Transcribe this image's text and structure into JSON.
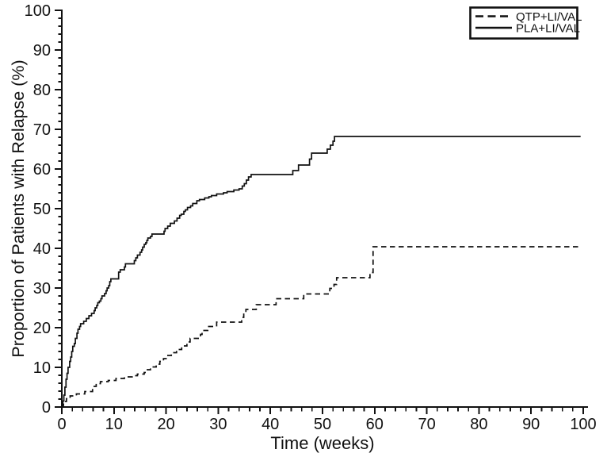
{
  "chart_data": {
    "type": "line",
    "subtype": "kaplan-meier-step",
    "title": "",
    "xlabel": "Time (weeks)",
    "ylabel": "Proportion of Patients with Relapse (%)",
    "xlim": [
      0,
      100
    ],
    "ylim": [
      0,
      100
    ],
    "x_major_ticks": [
      0,
      10,
      20,
      30,
      40,
      50,
      60,
      70,
      80,
      90,
      100
    ],
    "y_major_ticks": [
      0,
      10,
      20,
      30,
      40,
      50,
      60,
      70,
      80,
      90,
      100
    ],
    "minor_tick_interval": 2,
    "grid": "off",
    "line_color": "#111111",
    "background": "#ffffff",
    "legend": {
      "position": "top-right",
      "items": [
        {
          "label": "QTP+LI/VAL",
          "style": "dashed"
        },
        {
          "label": "PLA+LI/VAL",
          "style": "solid"
        }
      ]
    },
    "series": [
      {
        "name": "QTP+LI/VAL",
        "style": "dashed",
        "final_value": 40.4,
        "points": [
          [
            0,
            0
          ],
          [
            0.3,
            0.7
          ],
          [
            0.6,
            1.4
          ],
          [
            0.9,
            2.1
          ],
          [
            1.6,
            2.8
          ],
          [
            2.8,
            3.3
          ],
          [
            4.4,
            3.9
          ],
          [
            5.9,
            5.2
          ],
          [
            6.6,
            5.9
          ],
          [
            7.4,
            6.4
          ],
          [
            8.9,
            6.7
          ],
          [
            10.4,
            7.2
          ],
          [
            12,
            7.6
          ],
          [
            13.5,
            7.9
          ],
          [
            14.5,
            8.3
          ],
          [
            15.8,
            8.7
          ],
          [
            16.4,
            9.4
          ],
          [
            17,
            10.1
          ],
          [
            18.1,
            10.8
          ],
          [
            18.8,
            11.5
          ],
          [
            19.5,
            12.2
          ],
          [
            20.2,
            13
          ],
          [
            21,
            13.7
          ],
          [
            22,
            14.5
          ],
          [
            23,
            15.4
          ],
          [
            24,
            16.4
          ],
          [
            24.6,
            17.3
          ],
          [
            26.6,
            18.3
          ],
          [
            26.9,
            19.3
          ],
          [
            28,
            20.3
          ],
          [
            29.7,
            21.4
          ],
          [
            34.5,
            22.6
          ],
          [
            34.9,
            23.6
          ],
          [
            35.3,
            24.6
          ],
          [
            37.3,
            25.8
          ],
          [
            41.1,
            27.3
          ],
          [
            46.4,
            28.5
          ],
          [
            51.4,
            29.9
          ],
          [
            52.2,
            30.9
          ],
          [
            52.7,
            32.6
          ],
          [
            59.1,
            33.9
          ],
          [
            59.7,
            40.4
          ],
          [
            99.5,
            40.4
          ]
        ]
      },
      {
        "name": "PLA+LI/VAL",
        "style": "solid",
        "final_value": 68.2,
        "points": [
          [
            0,
            0
          ],
          [
            0.2,
            1.5
          ],
          [
            0.4,
            3
          ],
          [
            0.6,
            5
          ],
          [
            0.8,
            7
          ],
          [
            1,
            8.5
          ],
          [
            1.2,
            10
          ],
          [
            1.5,
            11.5
          ],
          [
            1.7,
            12.6
          ],
          [
            1.9,
            14
          ],
          [
            2.1,
            15.3
          ],
          [
            2.4,
            16
          ],
          [
            2.6,
            17.3
          ],
          [
            2.9,
            18.6
          ],
          [
            3.1,
            19.6
          ],
          [
            3.4,
            20.3
          ],
          [
            3.6,
            21
          ],
          [
            4.2,
            21.6
          ],
          [
            4.7,
            22.3
          ],
          [
            5.2,
            23
          ],
          [
            5.7,
            23.6
          ],
          [
            6.2,
            24.3
          ],
          [
            6.4,
            25
          ],
          [
            6.7,
            25.6
          ],
          [
            6.9,
            26.3
          ],
          [
            7.2,
            26.7
          ],
          [
            7.5,
            27.3
          ],
          [
            7.7,
            28
          ],
          [
            8.2,
            28.6
          ],
          [
            8.5,
            29.3
          ],
          [
            8.7,
            30
          ],
          [
            9,
            30.6
          ],
          [
            9.2,
            31.6
          ],
          [
            9.4,
            32.3
          ],
          [
            10.9,
            34
          ],
          [
            11.2,
            34.6
          ],
          [
            12,
            35.3
          ],
          [
            12.2,
            36.1
          ],
          [
            13.9,
            36.9
          ],
          [
            14.2,
            37.6
          ],
          [
            14.5,
            38.3
          ],
          [
            15,
            39
          ],
          [
            15.3,
            39.6
          ],
          [
            15.5,
            40.3
          ],
          [
            15.8,
            41
          ],
          [
            16.1,
            41.4
          ],
          [
            16.3,
            42
          ],
          [
            16.5,
            42.6
          ],
          [
            17,
            43
          ],
          [
            17.3,
            43.6
          ],
          [
            19.6,
            44.3
          ],
          [
            19.8,
            45
          ],
          [
            20.3,
            45.6
          ],
          [
            20.8,
            46.3
          ],
          [
            21.6,
            46.9
          ],
          [
            22.1,
            47.6
          ],
          [
            22.6,
            48.3
          ],
          [
            22.9,
            48.6
          ],
          [
            23.4,
            49.3
          ],
          [
            23.7,
            49.7
          ],
          [
            24.1,
            50.3
          ],
          [
            24.7,
            50.7
          ],
          [
            25.1,
            51.3
          ],
          [
            25.9,
            52
          ],
          [
            26.4,
            52.3
          ],
          [
            27.4,
            52.7
          ],
          [
            28.2,
            53
          ],
          [
            28.7,
            53.3
          ],
          [
            29.7,
            53.7
          ],
          [
            31,
            54
          ],
          [
            31.7,
            54.3
          ],
          [
            33,
            54.7
          ],
          [
            34,
            55
          ],
          [
            34.6,
            55.7
          ],
          [
            35,
            56.3
          ],
          [
            35.4,
            57.2
          ],
          [
            35.8,
            58
          ],
          [
            36.3,
            58.6
          ],
          [
            44.3,
            59.6
          ],
          [
            45.4,
            61
          ],
          [
            47.5,
            62.5
          ],
          [
            47.9,
            64
          ],
          [
            50.9,
            65
          ],
          [
            51.5,
            66
          ],
          [
            52,
            67
          ],
          [
            52.3,
            68.2
          ],
          [
            99.5,
            68.2
          ]
        ]
      }
    ]
  }
}
